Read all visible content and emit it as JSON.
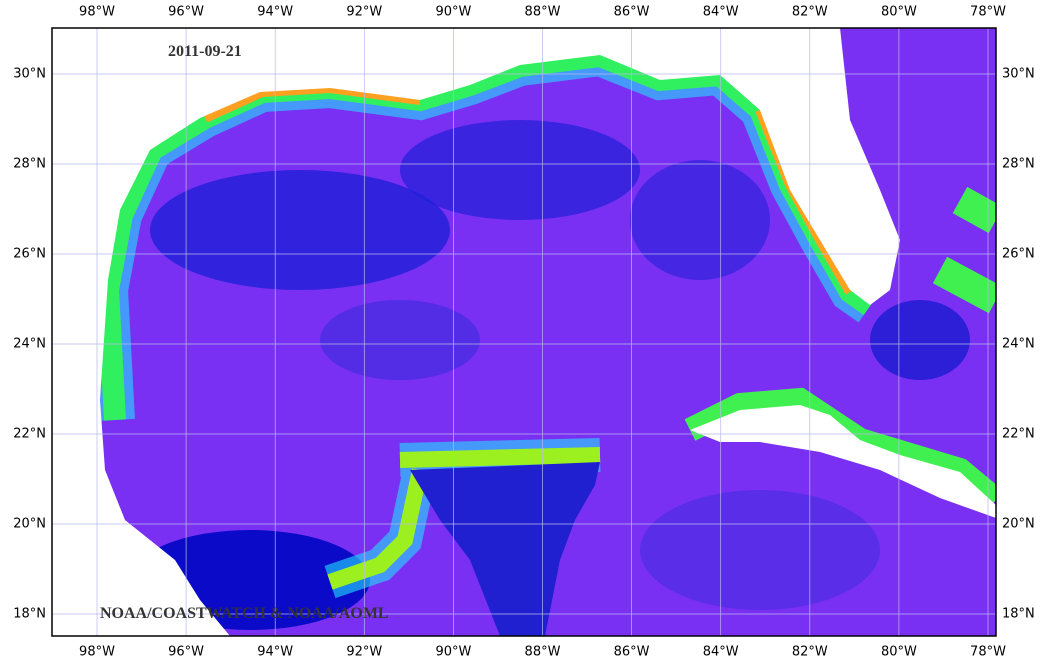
{
  "map": {
    "date": "2011-09-21",
    "credit": "NOAA/COASTWATCH & NOAA/AOML",
    "lon_labels": [
      "98°W",
      "96°W",
      "94°W",
      "92°W",
      "90°W",
      "88°W",
      "86°W",
      "84°W",
      "82°W",
      "80°W",
      "78°W"
    ],
    "lat_labels": [
      "30°N",
      "28°N",
      "26°N",
      "24°N",
      "22°N",
      "20°N",
      "18°N"
    ]
  }
}
